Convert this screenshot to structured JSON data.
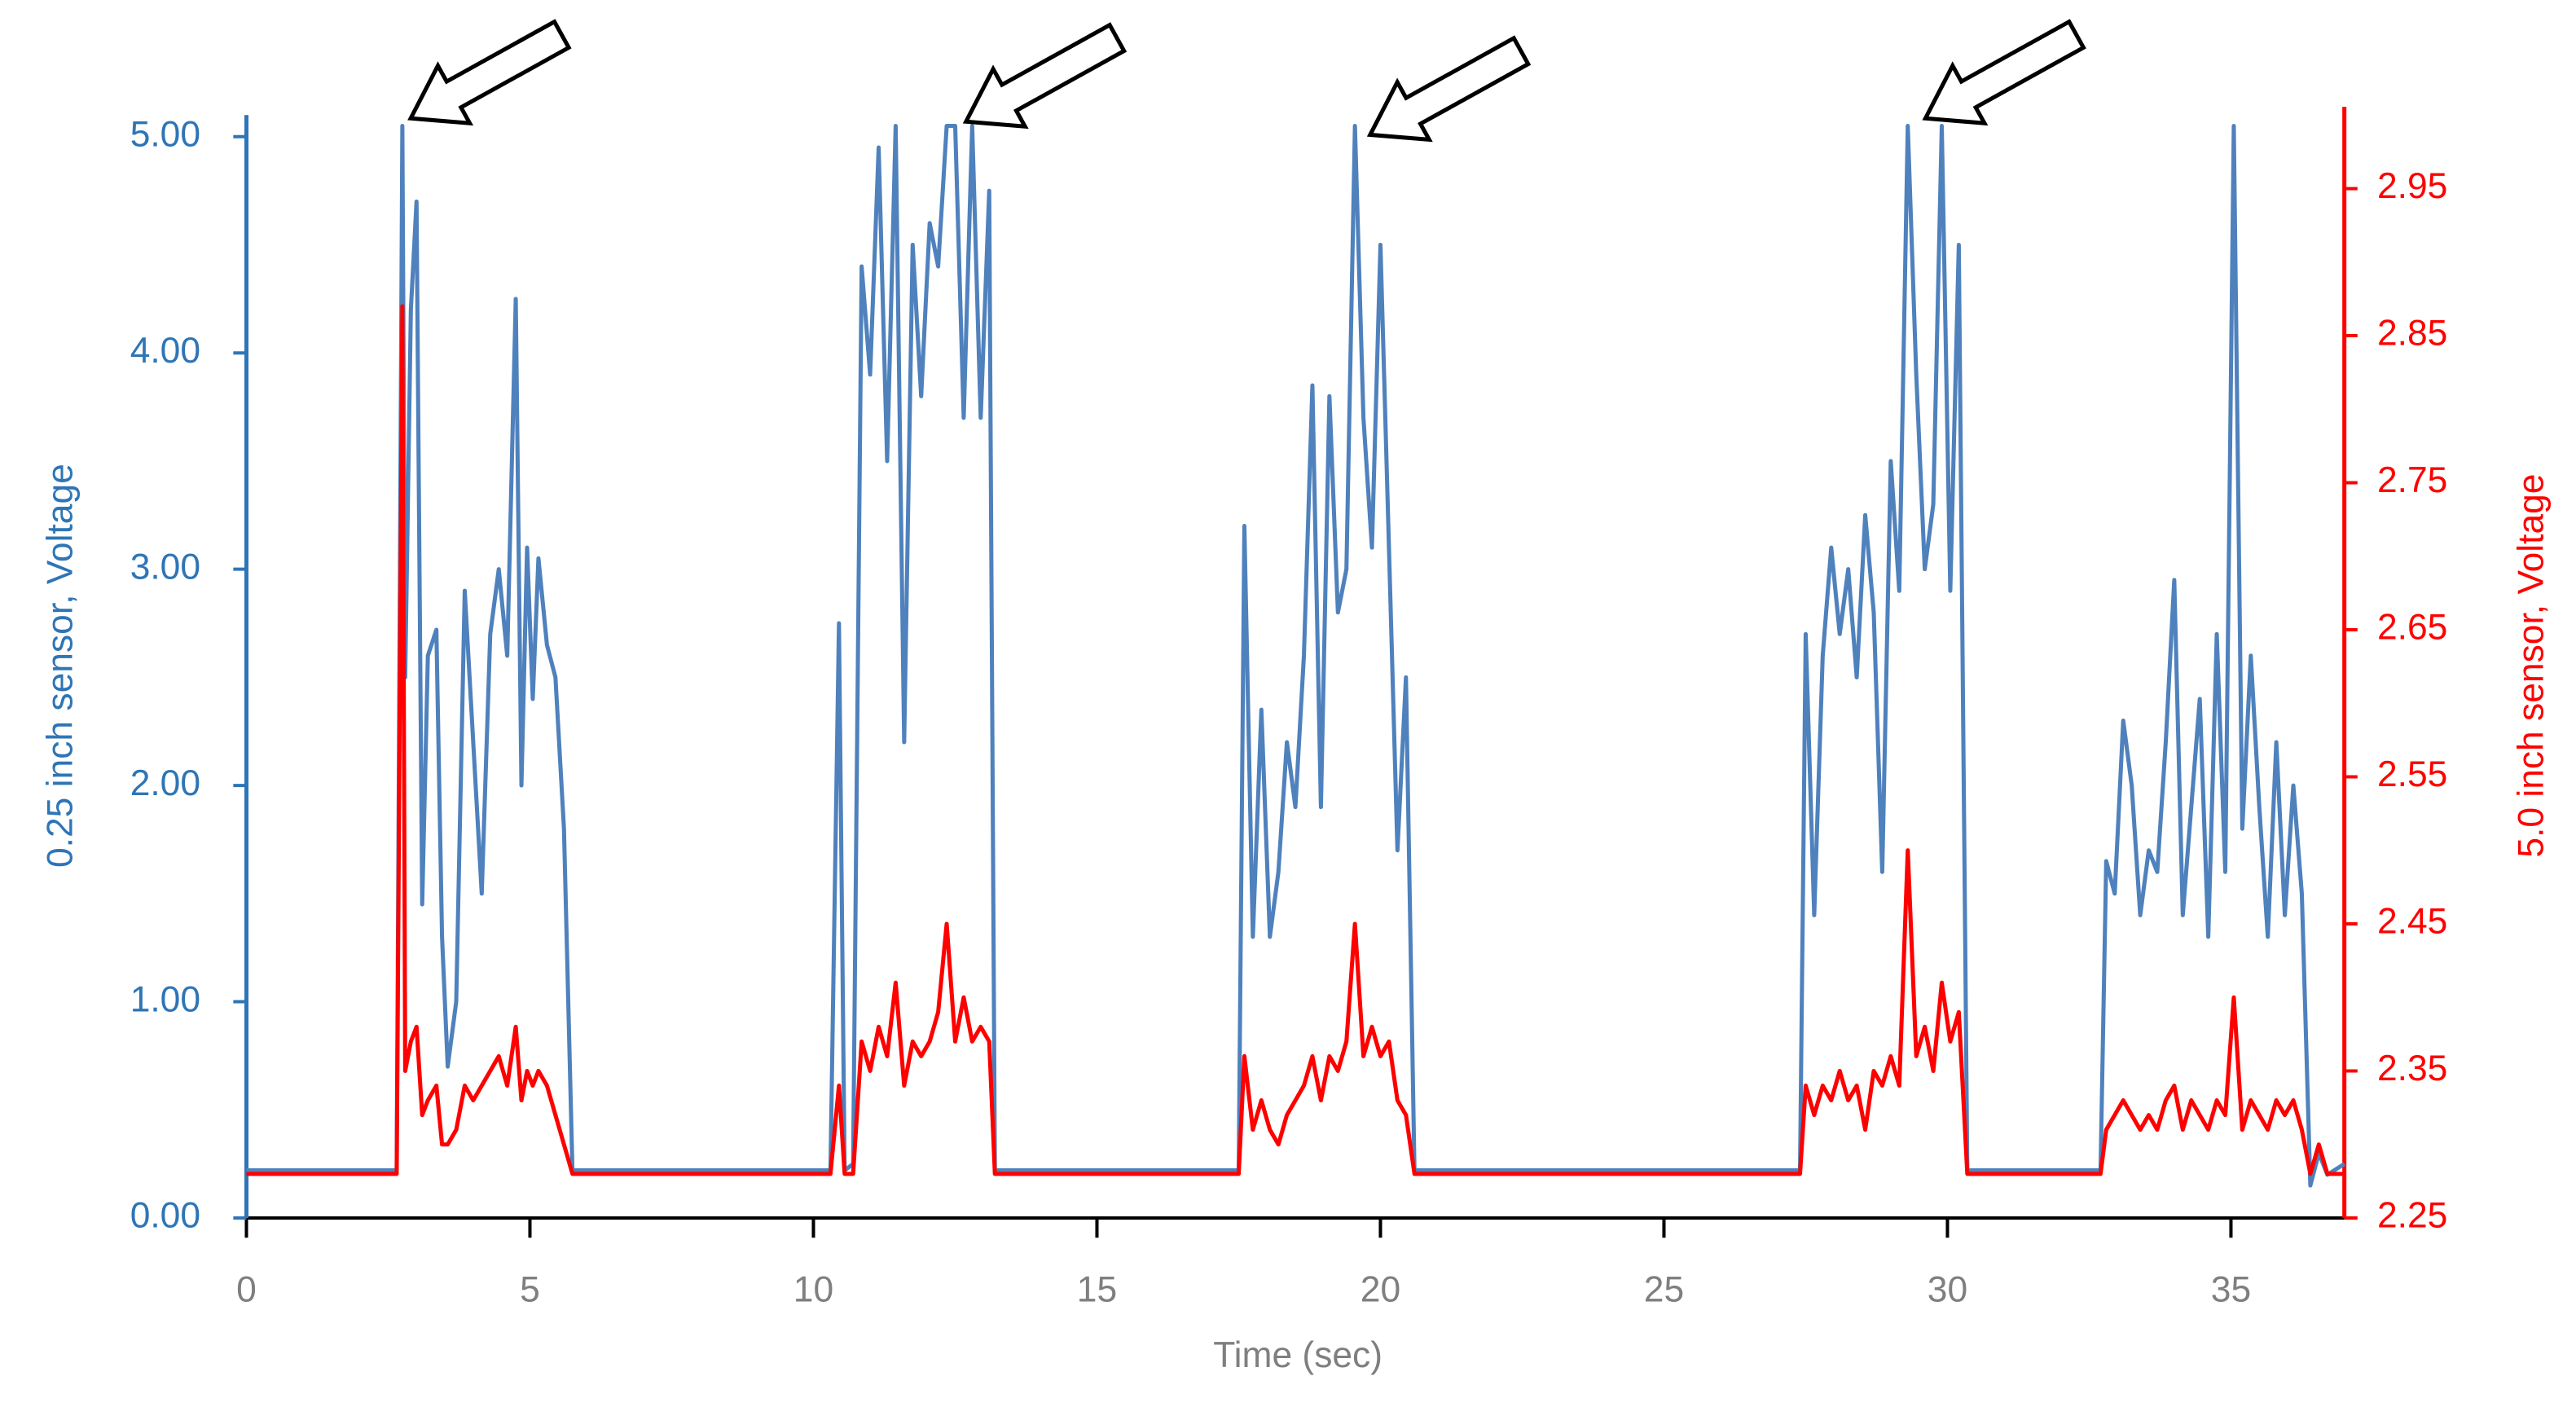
{
  "chart_data": {
    "type": "line",
    "xlabel": "Time (sec)",
    "ylabel": "0.25 inch sensor, Voltage",
    "y2label": "5.0 inch sensor, Voltage",
    "xlim": [
      0,
      37
    ],
    "xticks": [
      0,
      5,
      10,
      15,
      20,
      25,
      30,
      35
    ],
    "ylim": [
      0,
      5.1
    ],
    "yticks": [
      {
        "value": 0,
        "label": "0.00"
      },
      {
        "value": 1,
        "label": "1.00"
      },
      {
        "value": 2,
        "label": "2.00"
      },
      {
        "value": 3,
        "label": "3.00"
      },
      {
        "value": 4,
        "label": "4.00"
      },
      {
        "value": 5,
        "label": "5.00"
      }
    ],
    "y2lim": [
      2.25,
      3.0
    ],
    "y2ticks": [
      2.25,
      2.35,
      2.45,
      2.55,
      2.65,
      2.75,
      2.85,
      2.95
    ],
    "x": [
      0,
      2.65,
      2.75,
      2.8,
      2.9,
      3.0,
      3.1,
      3.2,
      3.35,
      3.45,
      3.55,
      3.7,
      3.85,
      4.0,
      4.15,
      4.3,
      4.45,
      4.6,
      4.75,
      4.85,
      4.95,
      5.05,
      5.15,
      5.3,
      5.45,
      5.6,
      5.75,
      5.9,
      10.3,
      10.45,
      10.55,
      10.7,
      10.85,
      11.0,
      11.15,
      11.3,
      11.45,
      11.6,
      11.75,
      11.9,
      12.05,
      12.2,
      12.35,
      12.5,
      12.65,
      12.8,
      12.95,
      13.1,
      13.2,
      17.5,
      17.6,
      17.75,
      17.9,
      18.05,
      18.2,
      18.35,
      18.5,
      18.65,
      18.8,
      18.95,
      19.1,
      19.25,
      19.4,
      19.55,
      19.7,
      19.85,
      20.0,
      20.15,
      20.3,
      20.45,
      20.6,
      20.75,
      27.4,
      27.5,
      27.65,
      27.8,
      27.95,
      28.1,
      28.25,
      28.4,
      28.55,
      28.7,
      28.85,
      29.0,
      29.15,
      29.3,
      29.45,
      29.6,
      29.75,
      29.9,
      30.05,
      30.2,
      30.35,
      32.7,
      32.8,
      32.95,
      33.1,
      33.25,
      33.4,
      33.55,
      33.7,
      33.85,
      34.0,
      34.15,
      34.3,
      34.45,
      34.6,
      34.75,
      34.9,
      35.05,
      35.2,
      35.35,
      35.5,
      35.65,
      35.8,
      35.95,
      36.1,
      36.25,
      36.4,
      36.55,
      36.7,
      37
    ],
    "series": [
      {
        "color": "#4f81bd",
        "values": [
          0.22,
          0.22,
          5.05,
          2.5,
          4.2,
          4.7,
          1.45,
          2.6,
          2.72,
          1.3,
          0.7,
          1.0,
          2.9,
          2.2,
          1.5,
          2.7,
          3.0,
          2.6,
          4.25,
          2.0,
          3.1,
          2.4,
          3.05,
          2.65,
          2.5,
          1.8,
          0.22,
          0.22,
          0.22,
          2.75,
          0.22,
          0.25,
          4.4,
          3.9,
          4.95,
          3.5,
          5.05,
          2.2,
          4.5,
          3.8,
          4.6,
          4.4,
          5.05,
          5.05,
          3.7,
          5.05,
          3.7,
          4.75,
          0.22,
          0.22,
          3.2,
          1.3,
          2.35,
          1.3,
          1.6,
          2.2,
          1.9,
          2.6,
          3.85,
          1.9,
          3.8,
          2.8,
          3.0,
          5.05,
          3.7,
          3.1,
          4.5,
          3.1,
          1.7,
          2.5,
          0.22,
          0.22,
          0.22,
          2.7,
          1.4,
          2.6,
          3.1,
          2.7,
          3.0,
          2.5,
          3.25,
          2.8,
          1.6,
          3.5,
          2.9,
          5.05,
          3.9,
          3.0,
          3.3,
          5.05,
          2.9,
          4.5,
          0.22,
          0.22,
          1.65,
          1.5,
          2.3,
          2.0,
          1.4,
          1.7,
          1.6,
          2.2,
          2.95,
          1.4,
          1.9,
          2.4,
          1.3,
          2.7,
          1.6,
          5.05,
          1.8,
          2.6,
          1.9,
          1.3,
          2.2,
          1.4,
          2.0,
          1.5,
          0.15,
          0.3,
          0.2,
          0.25
        ]
      },
      {
        "color": "#ff0000",
        "axis": "y2",
        "values": [
          2.28,
          2.28,
          2.87,
          2.35,
          2.37,
          2.38,
          2.32,
          2.33,
          2.34,
          2.3,
          2.3,
          2.31,
          2.34,
          2.33,
          2.34,
          2.35,
          2.36,
          2.34,
          2.38,
          2.33,
          2.35,
          2.34,
          2.35,
          2.34,
          2.32,
          2.3,
          2.28,
          2.28,
          2.28,
          2.34,
          2.28,
          2.28,
          2.37,
          2.35,
          2.38,
          2.36,
          2.41,
          2.34,
          2.37,
          2.36,
          2.37,
          2.39,
          2.45,
          2.37,
          2.4,
          2.37,
          2.38,
          2.37,
          2.28,
          2.28,
          2.36,
          2.31,
          2.33,
          2.31,
          2.3,
          2.32,
          2.33,
          2.34,
          2.36,
          2.33,
          2.36,
          2.35,
          2.37,
          2.45,
          2.36,
          2.38,
          2.36,
          2.37,
          2.33,
          2.32,
          2.28,
          2.28,
          2.28,
          2.34,
          2.32,
          2.34,
          2.33,
          2.35,
          2.33,
          2.34,
          2.31,
          2.35,
          2.34,
          2.36,
          2.34,
          2.5,
          2.36,
          2.38,
          2.35,
          2.41,
          2.37,
          2.39,
          2.28,
          2.28,
          2.31,
          2.32,
          2.33,
          2.32,
          2.31,
          2.32,
          2.31,
          2.33,
          2.34,
          2.31,
          2.33,
          2.32,
          2.31,
          2.33,
          2.32,
          2.4,
          2.31,
          2.33,
          2.32,
          2.31,
          2.33,
          2.32,
          2.33,
          2.31,
          2.28,
          2.3,
          2.28,
          2.28
        ]
      }
    ],
    "left_axis_color": "#2e75b6",
    "right_axis_color": "#ff0000",
    "x_axis_color": "#7f7f7f"
  }
}
